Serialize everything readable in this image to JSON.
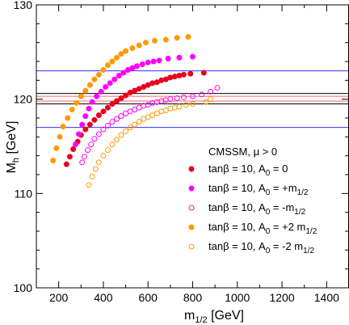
{
  "chart_data": {
    "type": "scatter",
    "title": "",
    "xlabel": {
      "main": "m",
      "sub": "1/2",
      "unit": " [GeV]"
    },
    "ylabel": {
      "main": "M",
      "sub": "h",
      "unit": " [GeV]"
    },
    "xlim": [
      100,
      1500
    ],
    "ylim": [
      100,
      130
    ],
    "xticks": [
      200,
      400,
      600,
      800,
      1000,
      1200,
      1400
    ],
    "yticks": [
      100,
      110,
      120,
      130
    ],
    "grid": false,
    "legend_header": "CMSSM, μ > 0",
    "legend_placement": "lower-right",
    "reference_lines": [
      {
        "y": 123.0,
        "color": "#3333ff"
      },
      {
        "y": 117.0,
        "color": "#3333ff"
      },
      {
        "y": 120.6,
        "color": "#000000"
      },
      {
        "y": 119.5,
        "color": "#000000"
      },
      {
        "y": 120.3,
        "color": "#ff6666"
      },
      {
        "y": 119.8,
        "color": "#ff6666"
      }
    ],
    "series": [
      {
        "name": {
          "main": "tanβ = 10, A",
          "sub": "0",
          "rest": " = 0",
          "rest_sub": ""
        },
        "color": "#e8001c",
        "filled": true,
        "points": [
          [
            235,
            113.1
          ],
          [
            250,
            113.9
          ],
          [
            265,
            114.7
          ],
          [
            285,
            115.5
          ],
          [
            300,
            116.2
          ],
          [
            320,
            116.8
          ],
          [
            340,
            117.3
          ],
          [
            360,
            117.8
          ],
          [
            380,
            118.3
          ],
          [
            400,
            118.7
          ],
          [
            420,
            119.1
          ],
          [
            440,
            119.5
          ],
          [
            460,
            119.8
          ],
          [
            480,
            120.1
          ],
          [
            500,
            120.4
          ],
          [
            520,
            120.7
          ],
          [
            540,
            120.9
          ],
          [
            560,
            121.1
          ],
          [
            580,
            121.3
          ],
          [
            600,
            121.5
          ],
          [
            620,
            121.7
          ],
          [
            640,
            121.8
          ],
          [
            660,
            122.0
          ],
          [
            680,
            122.1
          ],
          [
            700,
            122.3
          ],
          [
            720,
            122.4
          ],
          [
            740,
            122.5
          ],
          [
            760,
            122.6
          ],
          [
            790,
            122.7
          ],
          [
            850,
            122.8
          ]
        ]
      },
      {
        "name": {
          "main": "tanβ = 10, A",
          "sub": "0",
          "rest": " = +m",
          "rest_sub": "1/2"
        },
        "color": "#ff00ff",
        "filled": true,
        "points": [
          [
            275,
            115.2
          ],
          [
            290,
            116.3
          ],
          [
            305,
            117.3
          ],
          [
            320,
            118.2
          ],
          [
            335,
            119.0
          ],
          [
            350,
            119.7
          ],
          [
            370,
            120.3
          ],
          [
            390,
            120.8
          ],
          [
            410,
            121.3
          ],
          [
            430,
            121.7
          ],
          [
            450,
            122.1
          ],
          [
            470,
            122.5
          ],
          [
            490,
            122.8
          ],
          [
            510,
            123.1
          ],
          [
            530,
            123.3
          ],
          [
            550,
            123.5
          ],
          [
            575,
            123.7
          ],
          [
            600,
            123.9
          ],
          [
            625,
            124.0
          ],
          [
            650,
            124.1
          ],
          [
            690,
            124.3
          ],
          [
            740,
            124.4
          ],
          [
            800,
            124.5
          ]
        ]
      },
      {
        "name": {
          "main": "tanβ = 10, A",
          "sub": "0",
          "rest": " = -m",
          "rest_sub": "1/2"
        },
        "color": "#ff00ff",
        "filled": false,
        "points": [
          [
            305,
            113.3
          ],
          [
            315,
            113.9
          ],
          [
            330,
            114.6
          ],
          [
            345,
            115.2
          ],
          [
            360,
            115.8
          ],
          [
            380,
            116.3
          ],
          [
            400,
            116.8
          ],
          [
            420,
            117.2
          ],
          [
            440,
            117.6
          ],
          [
            460,
            117.9
          ],
          [
            480,
            118.2
          ],
          [
            500,
            118.5
          ],
          [
            520,
            118.7
          ],
          [
            540,
            118.9
          ],
          [
            560,
            119.1
          ],
          [
            580,
            119.3
          ],
          [
            600,
            119.4
          ],
          [
            620,
            119.6
          ],
          [
            640,
            119.7
          ],
          [
            660,
            119.8
          ],
          [
            680,
            119.9
          ],
          [
            700,
            120.0
          ],
          [
            730,
            120.1
          ],
          [
            760,
            120.2
          ],
          [
            800,
            120.3
          ],
          [
            840,
            120.5
          ],
          [
            880,
            120.8
          ],
          [
            910,
            121.2
          ]
        ]
      },
      {
        "name": {
          "main": "tanβ = 10, A",
          "sub": "0",
          "rest": " = +2 m",
          "rest_sub": "1/2"
        },
        "color": "#ff9900",
        "filled": true,
        "points": [
          [
            175,
            113.5
          ],
          [
            190,
            114.8
          ],
          [
            205,
            116.0
          ],
          [
            220,
            117.1
          ],
          [
            240,
            118.0
          ],
          [
            260,
            118.9
          ],
          [
            280,
            119.6
          ],
          [
            300,
            120.3
          ],
          [
            320,
            120.9
          ],
          [
            340,
            121.5
          ],
          [
            360,
            122.1
          ],
          [
            380,
            122.6
          ],
          [
            400,
            123.1
          ],
          [
            420,
            123.6
          ],
          [
            440,
            124.0
          ],
          [
            460,
            124.4
          ],
          [
            480,
            124.8
          ],
          [
            500,
            125.1
          ],
          [
            530,
            125.4
          ],
          [
            560,
            125.7
          ],
          [
            590,
            126.0
          ],
          [
            630,
            126.2
          ],
          [
            680,
            126.3
          ],
          [
            730,
            126.5
          ],
          [
            780,
            126.6
          ]
        ]
      },
      {
        "name": {
          "main": "tanβ = 10, A",
          "sub": "0",
          "rest": " = -2 m",
          "rest_sub": "1/2"
        },
        "color": "#ff9900",
        "filled": false,
        "points": [
          [
            335,
            110.9
          ],
          [
            350,
            111.8
          ],
          [
            365,
            112.6
          ],
          [
            380,
            113.3
          ],
          [
            400,
            114.0
          ],
          [
            420,
            114.6
          ],
          [
            440,
            115.2
          ],
          [
            460,
            115.7
          ],
          [
            480,
            116.2
          ],
          [
            500,
            116.6
          ],
          [
            520,
            117.0
          ],
          [
            540,
            117.3
          ],
          [
            560,
            117.6
          ],
          [
            580,
            117.9
          ],
          [
            600,
            118.1
          ],
          [
            620,
            118.3
          ],
          [
            640,
            118.5
          ],
          [
            660,
            118.7
          ],
          [
            680,
            118.8
          ],
          [
            700,
            119.0
          ],
          [
            720,
            119.1
          ],
          [
            740,
            119.2
          ],
          [
            770,
            119.4
          ],
          [
            800,
            119.5
          ],
          [
            860,
            119.7
          ],
          [
            880,
            120.0
          ]
        ]
      }
    ]
  }
}
